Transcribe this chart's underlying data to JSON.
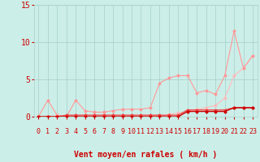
{
  "xlabel": "Vent moyen/en rafales ( km/h )",
  "xlim": [
    -0.5,
    23.5
  ],
  "ylim": [
    0,
    15
  ],
  "yticks": [
    0,
    5,
    10,
    15
  ],
  "xticks": [
    0,
    1,
    2,
    3,
    4,
    5,
    6,
    7,
    8,
    9,
    10,
    11,
    12,
    13,
    14,
    15,
    16,
    17,
    18,
    19,
    20,
    21,
    22,
    23
  ],
  "bg_color": "#cceee8",
  "grid_color": "#aad4ce",
  "line_dark_x": [
    0,
    1,
    2,
    3,
    4,
    5,
    6,
    7,
    8,
    9,
    10,
    11,
    12,
    13,
    14,
    15,
    16,
    17,
    18,
    19,
    20,
    21,
    22,
    23
  ],
  "line_dark_y": [
    0,
    0,
    0,
    0,
    0,
    0,
    0,
    0,
    0,
    0,
    0,
    0,
    0,
    0,
    0,
    0,
    0.7,
    0.7,
    0.7,
    0.7,
    0.7,
    1.2,
    1.2,
    1.2
  ],
  "line_dark_color": "#cc0000",
  "line_med_x": [
    0,
    1,
    2,
    3,
    4,
    5,
    6,
    7,
    8,
    9,
    10,
    11,
    12,
    13,
    14,
    15,
    16,
    17,
    18,
    19,
    20,
    21,
    22,
    23
  ],
  "line_med_y": [
    0,
    0,
    0,
    0.2,
    0.2,
    0.2,
    0.2,
    0.2,
    0.2,
    0.2,
    0.2,
    0.2,
    0.2,
    0.2,
    0.2,
    0.2,
    0.9,
    0.9,
    0.9,
    0.9,
    0.9,
    1.2,
    1.2,
    1.2
  ],
  "line_med_color": "#ee4444",
  "line_pink1_x": [
    0,
    1,
    2,
    3,
    4,
    5,
    6,
    7,
    8,
    9,
    10,
    11,
    12,
    13,
    14,
    15,
    16,
    17,
    18,
    19,
    20,
    21,
    22,
    23
  ],
  "line_pink1_y": [
    0,
    2.2,
    0.2,
    0,
    2.2,
    0.8,
    0.6,
    0.6,
    0.8,
    1.0,
    1.0,
    1.0,
    1.2,
    4.5,
    5.2,
    5.5,
    5.5,
    3.2,
    3.5,
    3.0,
    5.5,
    11.5,
    6.5,
    8.2
  ],
  "line_pink1_color": "#ff9999",
  "line_pink2_x": [
    0,
    1,
    2,
    3,
    4,
    5,
    6,
    7,
    8,
    9,
    10,
    11,
    12,
    13,
    14,
    15,
    16,
    17,
    18,
    19,
    20,
    21,
    22,
    23
  ],
  "line_pink2_y": [
    0,
    0,
    0,
    0,
    0,
    0,
    0,
    0,
    0,
    0,
    0,
    0,
    0,
    0,
    0.3,
    0.5,
    0.7,
    1.0,
    1.2,
    1.5,
    2.5,
    5.5,
    6.5,
    8.2
  ],
  "line_pink2_color": "#ffbbbb",
  "arrow_color": "#ee3333",
  "xlabel_color": "#cc0000",
  "xlabel_fontsize": 7,
  "tick_color": "#cc0000",
  "tick_fontsize": 6,
  "ytick_fontsize": 7
}
